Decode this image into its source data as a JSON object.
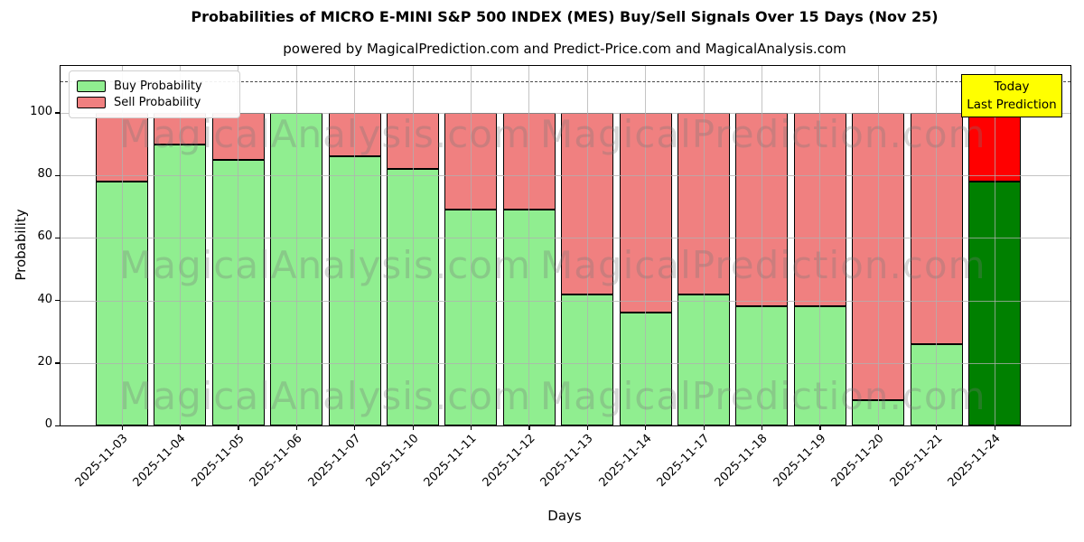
{
  "figure": {
    "title": "Probabilities of MICRO E-MINI S&P 500 INDEX (MES) Buy/Sell Signals Over 15 Days (Nov 25)",
    "subtitle": "powered by MagicalPrediction.com and Predict-Price.com and MagicalAnalysis.com"
  },
  "legend": {
    "items": [
      {
        "label": "Buy Probability",
        "color": "#90ee90"
      },
      {
        "label": "Sell Probability",
        "color": "#f08080"
      }
    ]
  },
  "annotation_box": {
    "line1": "Today",
    "line2": "Last Prediction",
    "bg_color": "#ffff00",
    "border_color": "#000000"
  },
  "watermarks": {
    "left_text": "MagicalAnalysis.com",
    "right_text": "MagicalPrediction.com"
  },
  "chart_data": {
    "type": "bar",
    "stacked": true,
    "title": "Probabilities of MICRO E-MINI S&P 500 INDEX (MES) Buy/Sell Signals Over 15 Days (Nov 25)",
    "xlabel": "Days",
    "ylabel": "Probability",
    "categories": [
      "2025-11-03",
      "2025-11-04",
      "2025-11-05",
      "2025-11-06",
      "2025-11-07",
      "2025-11-10",
      "2025-11-11",
      "2025-11-12",
      "2025-11-13",
      "2025-11-14",
      "2025-11-17",
      "2025-11-18",
      "2025-11-19",
      "2025-11-20",
      "2025-11-21",
      "2025-11-24"
    ],
    "series": [
      {
        "name": "Buy Probability",
        "color": "#90ee90",
        "values": [
          78,
          90,
          85,
          100,
          86,
          82,
          69,
          69,
          42,
          36,
          42,
          38,
          38,
          8,
          26,
          78
        ]
      },
      {
        "name": "Sell Probability",
        "color": "#f08080",
        "values": [
          22,
          10,
          15,
          0,
          14,
          18,
          31,
          31,
          58,
          64,
          58,
          62,
          62,
          92,
          74,
          22
        ]
      }
    ],
    "today_bar": {
      "category": "2025-11-24",
      "buy_color": "#008000",
      "sell_color": "#ff0000"
    },
    "yticks": [
      0,
      20,
      40,
      60,
      80,
      100
    ],
    "ylim": [
      0,
      115
    ],
    "dashed_hline_y": 110,
    "grid": true,
    "legend_position": "upper left",
    "colors": {
      "bar_edge": "#000000",
      "grid": "#b0b0b0",
      "dashed_line": "#4a4a4a"
    }
  }
}
